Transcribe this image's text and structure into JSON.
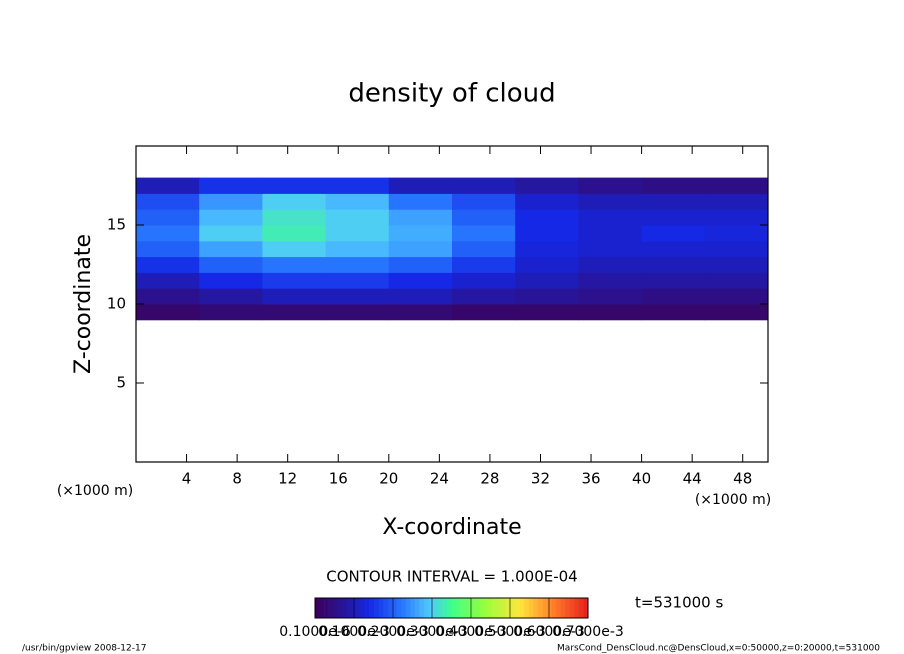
{
  "chart_data": {
    "type": "heatmap",
    "title": "density of cloud",
    "x_label": "X-coordinate",
    "y_label": "Z-coordinate",
    "x_units": "(×1000 m)",
    "y_units": "(×1000 m)",
    "xlim": [
      0,
      50
    ],
    "ylim": [
      0,
      20
    ],
    "xticks": [
      4,
      8,
      12,
      16,
      20,
      24,
      28,
      32,
      36,
      40,
      44,
      48
    ],
    "yticks": [
      5,
      10,
      15
    ],
    "x_edges": [
      0,
      5,
      10,
      15,
      20,
      25,
      30,
      35,
      40,
      45,
      50
    ],
    "y_edges": [
      9,
      10,
      11,
      12,
      13,
      14,
      15,
      16,
      17,
      18
    ],
    "z": [
      [
        2e-05,
        3e-05,
        3e-05,
        3e-05,
        3e-05,
        2e-05,
        2e-05,
        2e-05,
        2e-05,
        2e-05
      ],
      [
        6e-05,
        8e-05,
        0.0001,
        0.0001,
        0.0001,
        8e-05,
        7e-05,
        6e-05,
        5e-05,
        5e-05
      ],
      [
        0.0001,
        0.00014,
        0.00016,
        0.00016,
        0.00014,
        0.00012,
        0.0001,
        8e-05,
        8e-05,
        8e-05
      ],
      [
        0.00015,
        0.0002,
        0.00022,
        0.00022,
        0.0002,
        0.00016,
        0.00012,
        0.0001,
        0.0001,
        0.0001
      ],
      [
        0.0002,
        0.00026,
        0.0003,
        0.00028,
        0.00026,
        0.0002,
        0.00013,
        0.00012,
        0.00012,
        0.00012
      ],
      [
        0.00022,
        0.0003,
        0.00033,
        0.0003,
        0.00027,
        0.00022,
        0.00014,
        0.00012,
        0.00014,
        0.00013
      ],
      [
        0.0002,
        0.00028,
        0.00032,
        0.0003,
        0.00026,
        0.0002,
        0.00014,
        0.00012,
        0.00012,
        0.00012
      ],
      [
        0.00018,
        0.00025,
        0.0003,
        0.00028,
        0.00022,
        0.00018,
        0.00012,
        0.0001,
        0.0001,
        0.0001
      ],
      [
        0.0001,
        0.00015,
        0.00015,
        0.00015,
        0.0001,
        0.0001,
        8e-05,
        6e-05,
        5e-05,
        5e-05
      ]
    ],
    "zlim": [
      0,
      0.0007
    ],
    "contour_interval": "CONTOUR INTERVAL = 1.000E-04",
    "time": "t=531000 s",
    "colorbar_ticks": [
      {
        "value": 1e-07,
        "label": "0.1000e-6"
      },
      {
        "value": 0.0001,
        "label": "0.1000e-3"
      },
      {
        "value": 0.0002,
        "label": "0.2000e-3"
      },
      {
        "value": 0.0003,
        "label": "0.3000e-3"
      },
      {
        "value": 0.0004,
        "label": "0.4000e-3"
      },
      {
        "value": 0.0005,
        "label": "0.5000e-3"
      },
      {
        "value": 0.0006,
        "label": "0.6000e-3"
      },
      {
        "value": 0.0007,
        "label": "0.7000e-3"
      }
    ],
    "footer_left": "/usr/bin/gpview  2008-12-17",
    "footer_right": "MarsCond_DensCloud.nc@DensCloud,x=0:50000,z=0:20000,t=531000"
  }
}
